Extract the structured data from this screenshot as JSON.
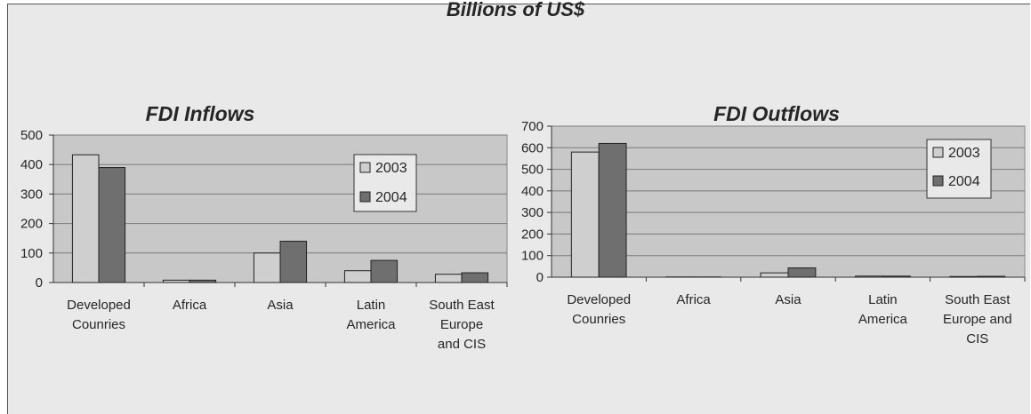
{
  "page_title": "Billions of US$",
  "colors": {
    "c2003": "#cfcfcf",
    "c2004": "#6f6f6f",
    "plot_bg": "#c8c8c8",
    "grid": "#7a7a7a"
  },
  "chart_data": [
    {
      "type": "bar",
      "title": "FDI Inflows",
      "categories": [
        [
          "Developed",
          "Counries"
        ],
        [
          "Africa"
        ],
        [
          "Asia"
        ],
        [
          "Latin",
          "America"
        ],
        [
          "South East",
          "Europe",
          "and CIS"
        ]
      ],
      "series": [
        {
          "name": "2003",
          "values": [
            433,
            8,
            100,
            40,
            28
          ]
        },
        {
          "name": "2004",
          "values": [
            390,
            8,
            140,
            75,
            33
          ]
        }
      ],
      "yticks": [
        0,
        100,
        200,
        300,
        400,
        500
      ],
      "ylim": [
        0,
        500
      ],
      "grid": true,
      "legend": "top-right"
    },
    {
      "type": "bar",
      "title": "FDI Outflows",
      "categories": [
        [
          "Developed",
          "Counries"
        ],
        [
          "Africa"
        ],
        [
          "Asia"
        ],
        [
          "Latin",
          "America"
        ],
        [
          "South East",
          "Europe and",
          "CIS"
        ]
      ],
      "series": [
        {
          "name": "2003",
          "values": [
            580,
            1,
            20,
            5,
            3
          ]
        },
        {
          "name": "2004",
          "values": [
            620,
            1,
            43,
            5,
            4
          ]
        }
      ],
      "yticks": [
        0,
        100,
        200,
        300,
        400,
        500,
        600,
        700
      ],
      "ylim": [
        0,
        700
      ],
      "grid": true,
      "legend": "top-right"
    }
  ]
}
